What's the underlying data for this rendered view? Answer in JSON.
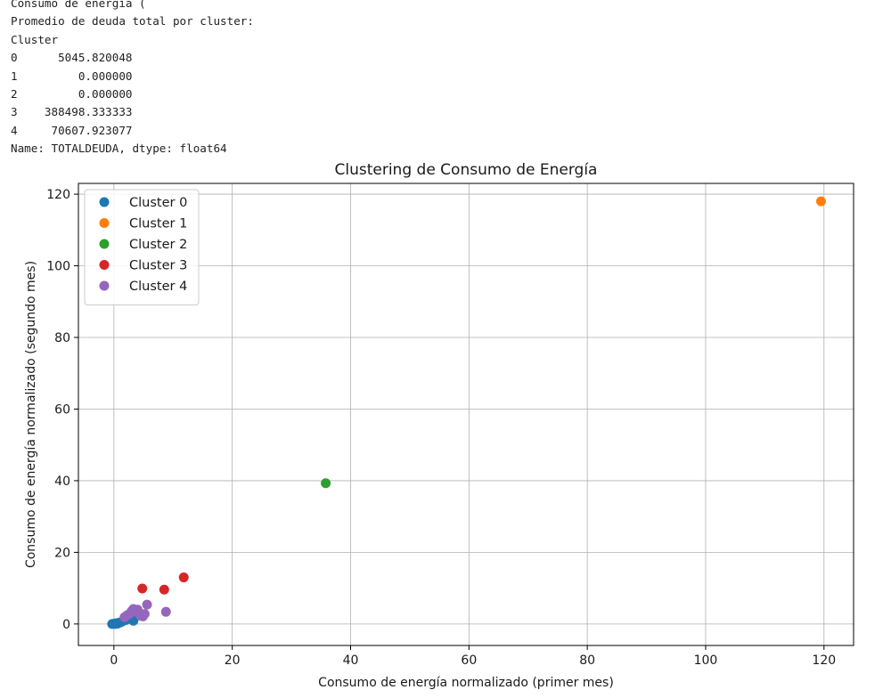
{
  "output": {
    "lines": [
      "Consumo de energía (",
      "Promedio de deuda total por cluster:",
      "Cluster",
      "0      5045.820048",
      "1         0.000000",
      "2         0.000000",
      "3    388498.333333",
      "4     70607.923077",
      "Name: TOTALDEUDA, dtype: float64"
    ]
  },
  "chart_data": {
    "type": "scatter",
    "title": "Clustering de Consumo de Energía",
    "xlabel": "Consumo de energía normalizado (primer mes)",
    "ylabel": "Consumo de energía normalizado (segundo mes)",
    "xlim": [
      -6,
      125
    ],
    "ylim": [
      -6,
      123
    ],
    "xticks": [
      0,
      20,
      40,
      60,
      80,
      100,
      120
    ],
    "yticks": [
      0,
      20,
      40,
      60,
      80,
      100,
      120
    ],
    "grid": true,
    "legend_position": "top-left",
    "series": [
      {
        "name": "Cluster 0",
        "color": "#1f77b4",
        "x": [
          -0.3,
          0.0,
          0.2,
          0.4,
          0.6,
          0.8,
          1.0,
          1.3,
          1.6,
          2.0,
          3.3
        ],
        "y": [
          0.0,
          0.1,
          0.0,
          0.2,
          0.1,
          0.3,
          0.4,
          0.6,
          0.9,
          1.1,
          0.9
        ]
      },
      {
        "name": "Cluster 1",
        "color": "#ff7f0e",
        "x": [
          119.5
        ],
        "y": [
          118.0
        ]
      },
      {
        "name": "Cluster 2",
        "color": "#2ca02c",
        "x": [
          35.8
        ],
        "y": [
          39.3
        ]
      },
      {
        "name": "Cluster 3",
        "color": "#d62728",
        "x": [
          4.8,
          8.5,
          11.8
        ],
        "y": [
          9.9,
          9.6,
          13.0
        ]
      },
      {
        "name": "Cluster 4",
        "color": "#9467bd",
        "x": [
          1.8,
          2.2,
          2.6,
          3.0,
          3.3,
          3.6,
          4.0,
          4.5,
          4.9,
          5.2,
          5.6,
          8.8
        ],
        "y": [
          1.9,
          2.4,
          2.8,
          3.6,
          4.2,
          3.5,
          4.0,
          2.3,
          2.1,
          2.8,
          5.4,
          3.4
        ]
      }
    ]
  }
}
